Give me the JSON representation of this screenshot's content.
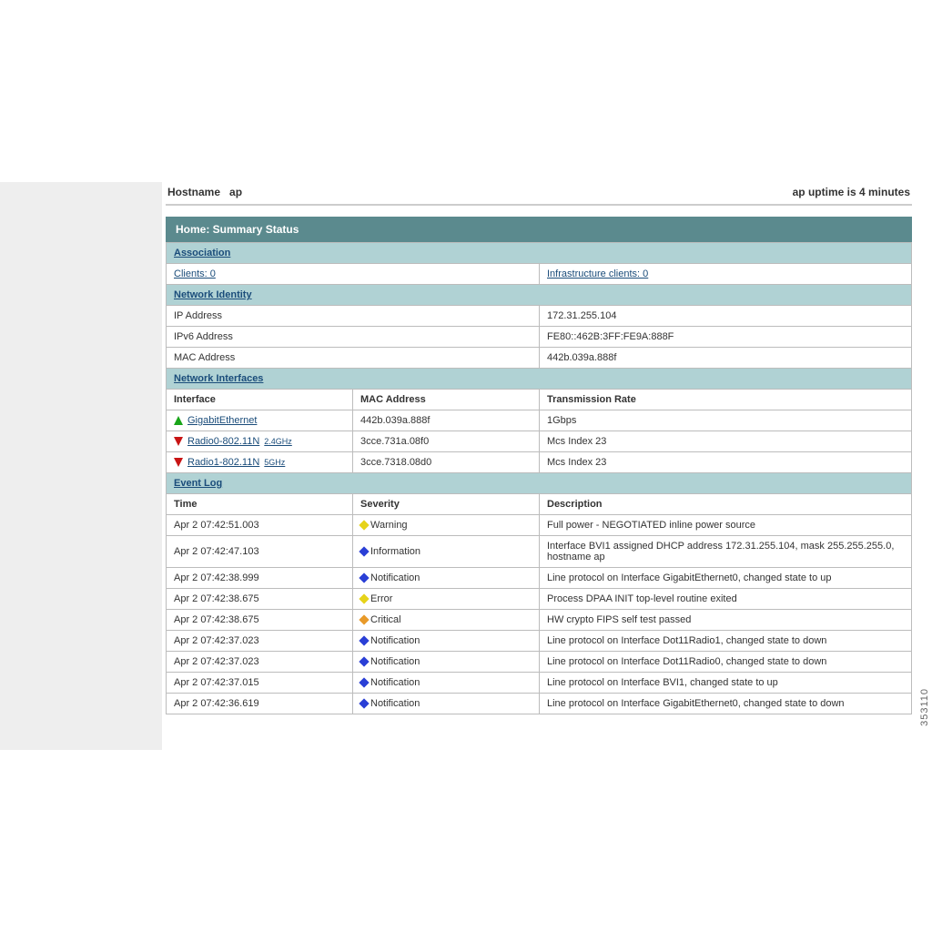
{
  "header": {
    "hostname_label": "Hostname",
    "hostname_value": "ap",
    "uptime": "ap uptime is 4 minutes"
  },
  "page_title": "Home: Summary Status",
  "association": {
    "heading": "Association",
    "clients": "Clients: 0",
    "infra": "Infrastructure clients: 0"
  },
  "network_identity": {
    "heading": "Network Identity",
    "rows": [
      {
        "label": "IP Address",
        "value": "172.31.255.104"
      },
      {
        "label": "IPv6 Address",
        "value": "FE80::462B:3FF:FE9A:888F"
      },
      {
        "label": "MAC Address",
        "value": "442b.039a.888f"
      }
    ]
  },
  "network_interfaces": {
    "heading": "Network Interfaces",
    "columns": {
      "iface": "Interface",
      "mac": "MAC Address",
      "rate": "Transmission Rate"
    },
    "rows": [
      {
        "status": "up",
        "name": "GigabitEthernet",
        "band": "",
        "mac": "442b.039a.888f",
        "rate": "1Gbps"
      },
      {
        "status": "down",
        "name": "Radio0-802.11N",
        "band": "2.4GHz",
        "mac": "3cce.731a.08f0",
        "rate": "Mcs Index 23"
      },
      {
        "status": "down",
        "name": "Radio1-802.11N",
        "band": "5GHz",
        "mac": "3cce.7318.08d0",
        "rate": "Mcs Index 23"
      }
    ]
  },
  "event_log": {
    "heading": "Event Log",
    "columns": {
      "time": "Time",
      "severity": "Severity",
      "desc": "Description"
    },
    "rows": [
      {
        "time": "Apr 2 07:42:51.003",
        "sev": "Warning",
        "sev_color": "d-yellow",
        "desc": "Full power - NEGOTIATED inline power source"
      },
      {
        "time": "Apr 2 07:42:47.103",
        "sev": "Information",
        "sev_color": "d-blue",
        "desc": "Interface BVI1 assigned DHCP address 172.31.255.104, mask 255.255.255.0, hostname ap"
      },
      {
        "time": "Apr 2 07:42:38.999",
        "sev": "Notification",
        "sev_color": "d-blue",
        "desc": "Line protocol on Interface GigabitEthernet0, changed state to up"
      },
      {
        "time": "Apr 2 07:42:38.675",
        "sev": "Error",
        "sev_color": "d-yellow",
        "desc": "Process DPAA INIT top-level routine exited"
      },
      {
        "time": "Apr 2 07:42:38.675",
        "sev": "Critical",
        "sev_color": "d-orange",
        "desc": "HW crypto FIPS self test passed"
      },
      {
        "time": "Apr 2 07:42:37.023",
        "sev": "Notification",
        "sev_color": "d-blue",
        "desc": "Line protocol on Interface Dot11Radio1, changed state to down"
      },
      {
        "time": "Apr 2 07:42:37.023",
        "sev": "Notification",
        "sev_color": "d-blue",
        "desc": "Line protocol on Interface Dot11Radio0, changed state to down"
      },
      {
        "time": "Apr 2 07:42:37.015",
        "sev": "Notification",
        "sev_color": "d-blue",
        "desc": "Line protocol on Interface BVI1, changed state to up"
      },
      {
        "time": "Apr 2 07:42:36.619",
        "sev": "Notification",
        "sev_color": "d-blue",
        "desc": "Line protocol on Interface GigabitEthernet0, changed state to down"
      }
    ]
  },
  "side_label": "353110",
  "colors": {
    "title_bg": "#5b8a8e",
    "section_bg": "#b0d2d4",
    "border": "#bcbcbc",
    "link": "#1a4c7a",
    "up": "#19a519",
    "down": "#c81414"
  }
}
